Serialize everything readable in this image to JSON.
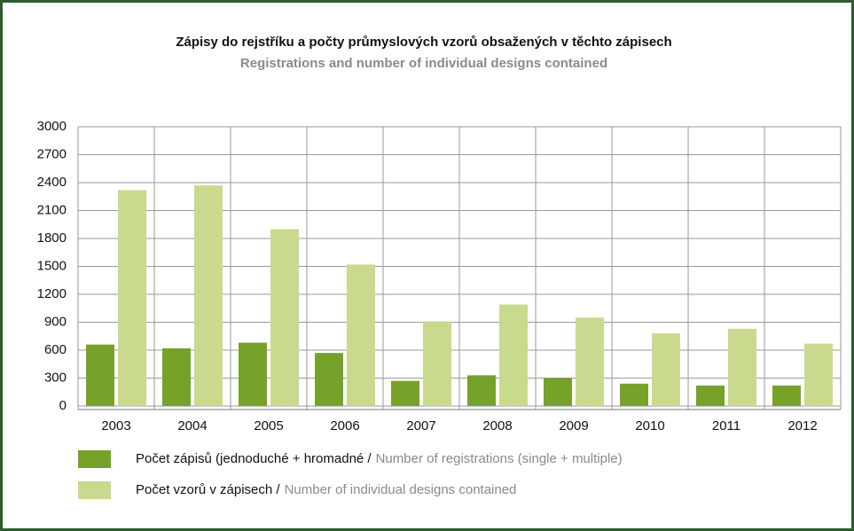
{
  "chart_data": {
    "type": "bar",
    "title": "Zápisy do rejstříku a počty průmyslových vzorů obsažených v těchto zápisech",
    "subtitle": "Registrations and number of individual designs contained",
    "categories": [
      "2003",
      "2004",
      "2005",
      "2006",
      "2007",
      "2008",
      "2009",
      "2010",
      "2011",
      "2012"
    ],
    "series": [
      {
        "name": "Počet zápisů (jednoduché + hromadné /",
        "name_en": "Number of registrations (single + multiple)",
        "color": "#76a22a",
        "values": [
          660,
          620,
          680,
          570,
          270,
          330,
          300,
          240,
          220,
          220
        ]
      },
      {
        "name": "Počet vzorů v zápisech /",
        "name_en": "Number of individual designs contained",
        "color": "#c9d98e",
        "values": [
          2320,
          2370,
          1900,
          1520,
          910,
          1090,
          950,
          780,
          830,
          670
        ]
      }
    ],
    "ylim": [
      0,
      3000
    ],
    "yticks": [
      0,
      300,
      600,
      900,
      1200,
      1500,
      1800,
      2100,
      2400,
      2700,
      3000
    ],
    "grid": true
  }
}
